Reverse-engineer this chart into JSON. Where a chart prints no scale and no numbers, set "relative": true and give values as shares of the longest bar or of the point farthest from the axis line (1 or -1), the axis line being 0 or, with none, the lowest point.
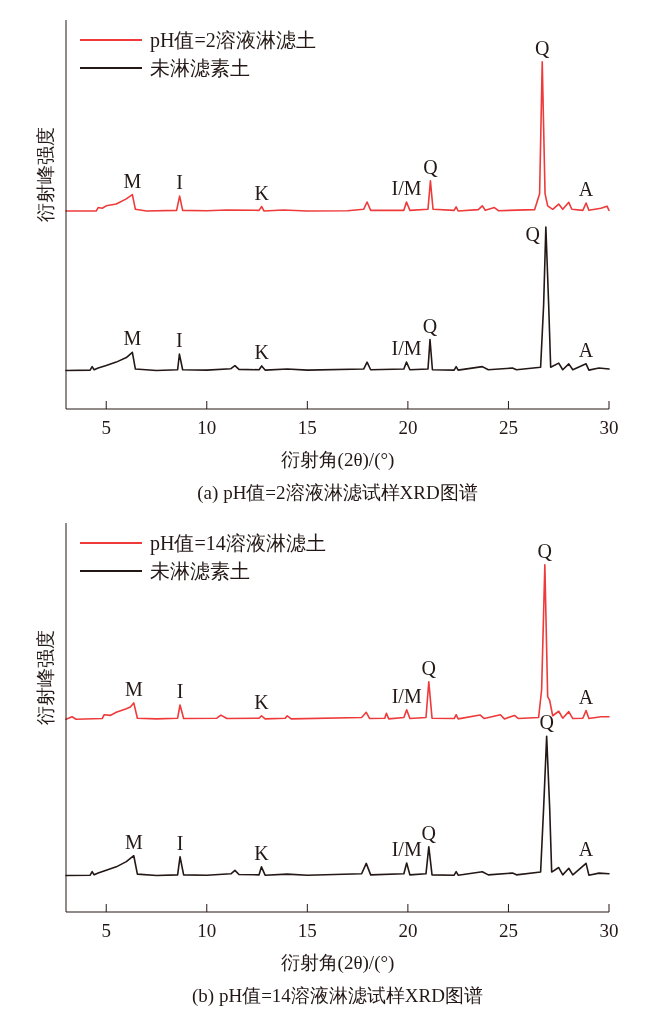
{
  "chart_data": [
    {
      "type": "line",
      "title": "(a) pH值=2溶液淋滤试样XRD图谱",
      "xlabel": "衍射角(2θ)/(°)",
      "ylabel": "衍射峰强度",
      "relative": true,
      "legend": "top left",
      "xlim": [
        3,
        30
      ],
      "xticks": [
        5,
        10,
        15,
        20,
        25,
        30
      ],
      "series": [
        {
          "name": "pH值=2溶液淋滤土",
          "color": "#ee3a3a",
          "x": [
            3,
            4.5,
            4.6,
            4.8,
            5.0,
            5.5,
            6.0,
            6.3,
            6.45,
            7.0,
            8.5,
            8.65,
            8.8,
            10,
            11,
            12.6,
            12.73,
            12.85,
            13.8,
            15,
            17,
            17.8,
            17.97,
            18.15,
            19.8,
            19.93,
            20.1,
            21.0,
            21.12,
            21.25,
            22.3,
            22.4,
            22.5,
            23.5,
            23.7,
            23.85,
            24.3,
            24.5,
            26.3,
            26.55,
            26.68,
            26.82,
            26.95,
            27.2,
            27.5,
            27.7,
            28.0,
            28.15,
            28.7,
            28.86,
            29.0,
            29.6,
            29.9,
            30
          ],
          "values": [
            0.57,
            0.57,
            0.58,
            0.578,
            0.585,
            0.59,
            0.605,
            0.617,
            0.575,
            0.57,
            0.572,
            0.613,
            0.572,
            0.571,
            0.573,
            0.572,
            0.583,
            0.57,
            0.573,
            0.57,
            0.571,
            0.575,
            0.596,
            0.572,
            0.572,
            0.596,
            0.572,
            0.575,
            0.657,
            0.575,
            0.572,
            0.582,
            0.57,
            0.574,
            0.585,
            0.572,
            0.58,
            0.571,
            0.574,
            0.62,
            1.0,
            0.62,
            0.585,
            0.575,
            0.59,
            0.575,
            0.595,
            0.575,
            0.572,
            0.593,
            0.572,
            0.578,
            0.584,
            0.572
          ]
        },
        {
          "name": "未淋滤素土",
          "color": "#231815",
          "x": [
            3,
            4.2,
            4.3,
            4.4,
            4.6,
            5.0,
            5.5,
            6.0,
            6.3,
            6.45,
            7.5,
            8.55,
            8.64,
            8.8,
            10,
            11.2,
            11.4,
            11.6,
            12.6,
            12.73,
            12.9,
            14,
            15,
            17.8,
            17.97,
            18.15,
            19.8,
            19.93,
            20.1,
            21.0,
            21.1,
            21.22,
            22.3,
            22.4,
            22.5,
            23.7,
            24,
            25.2,
            25.4,
            26.6,
            26.75,
            26.86,
            27.0,
            27.1,
            27.5,
            27.7,
            28.0,
            28.2,
            28.86,
            29.0,
            29.5,
            30
          ],
          "values": [
            0.111,
            0.112,
            0.122,
            0.113,
            0.118,
            0.125,
            0.135,
            0.148,
            0.163,
            0.115,
            0.111,
            0.113,
            0.158,
            0.113,
            0.112,
            0.116,
            0.125,
            0.114,
            0.113,
            0.124,
            0.112,
            0.115,
            0.112,
            0.115,
            0.135,
            0.113,
            0.115,
            0.135,
            0.113,
            0.115,
            0.2,
            0.113,
            0.112,
            0.122,
            0.112,
            0.122,
            0.113,
            0.118,
            0.113,
            0.12,
            0.3,
            0.524,
            0.3,
            0.12,
            0.132,
            0.113,
            0.13,
            0.113,
            0.13,
            0.112,
            0.118,
            0.115
          ]
        }
      ],
      "annotations": [
        {
          "text": "M",
          "x": 6.3,
          "y": 0.617
        },
        {
          "text": "I",
          "x": 8.65,
          "y": 0.613
        },
        {
          "text": "K",
          "x": 12.73,
          "y": 0.583
        },
        {
          "text": "I/M",
          "x": 19.93,
          "y": 0.596
        },
        {
          "text": "Q",
          "x": 21.12,
          "y": 0.657
        },
        {
          "text": "Q",
          "x": 26.68,
          "y": 1.0
        },
        {
          "text": "A",
          "x": 28.86,
          "y": 0.593
        },
        {
          "text": "M",
          "x": 6.3,
          "y": 0.163
        },
        {
          "text": "I",
          "x": 8.64,
          "y": 0.158
        },
        {
          "text": "K",
          "x": 12.73,
          "y": 0.124
        },
        {
          "text": "I/M",
          "x": 19.93,
          "y": 0.135
        },
        {
          "text": "Q",
          "x": 21.1,
          "y": 0.2
        },
        {
          "text": "Q",
          "x": 26.86,
          "y": 0.524
        },
        {
          "text": "A",
          "x": 28.86,
          "y": 0.13
        }
      ]
    },
    {
      "type": "line",
      "title": "(b) pH值=14溶液淋滤试样XRD图谱",
      "xlabel": "衍射角(2θ)/(°)",
      "ylabel": "衍射峰强度",
      "relative": true,
      "legend": "top left",
      "xlim": [
        3,
        30
      ],
      "xticks": [
        5,
        10,
        15,
        20,
        25,
        30
      ],
      "series": [
        {
          "name": "pH值=14溶液淋滤土",
          "color": "#ee3a3a",
          "x": [
            3,
            3.3,
            3.5,
            4.8,
            4.9,
            5.2,
            5.5,
            6.0,
            6.2,
            6.37,
            6.55,
            7.5,
            8.55,
            8.67,
            8.85,
            10.5,
            10.7,
            11,
            12.6,
            12.72,
            12.9,
            13.9,
            14.0,
            14.2,
            17.7,
            17.93,
            18.1,
            18.85,
            18.93,
            19.05,
            19.8,
            19.94,
            20.1,
            20.9,
            21.04,
            21.2,
            22.3,
            22.4,
            22.5,
            23.6,
            23.8,
            24.6,
            24.8,
            25.3,
            25.5,
            26.5,
            26.65,
            26.81,
            26.95,
            27.05,
            27.2,
            27.5,
            27.7,
            28.0,
            28.2,
            28.7,
            28.86,
            29.0,
            29.6,
            30
          ],
          "values": [
            0.555,
            0.562,
            0.555,
            0.557,
            0.568,
            0.566,
            0.575,
            0.585,
            0.59,
            0.602,
            0.558,
            0.556,
            0.558,
            0.596,
            0.557,
            0.558,
            0.567,
            0.557,
            0.558,
            0.565,
            0.556,
            0.558,
            0.565,
            0.556,
            0.56,
            0.575,
            0.557,
            0.558,
            0.572,
            0.556,
            0.56,
            0.582,
            0.557,
            0.56,
            0.663,
            0.558,
            0.557,
            0.568,
            0.556,
            0.567,
            0.557,
            0.568,
            0.556,
            0.566,
            0.557,
            0.56,
            0.64,
            1.0,
            0.62,
            0.609,
            0.565,
            0.578,
            0.558,
            0.577,
            0.557,
            0.558,
            0.58,
            0.557,
            0.562,
            0.562
          ]
        },
        {
          "name": "未淋滤素土",
          "color": "#231815",
          "x": [
            3,
            4.2,
            4.3,
            4.4,
            4.6,
            5.0,
            5.5,
            6.0,
            6.37,
            6.55,
            7.5,
            8.55,
            8.67,
            8.85,
            10,
            11.2,
            11.4,
            11.6,
            12.6,
            12.72,
            12.9,
            14,
            15,
            17.7,
            17.93,
            18.15,
            19.8,
            19.94,
            20.1,
            20.9,
            21.04,
            21.2,
            22.3,
            22.4,
            22.5,
            23.7,
            24,
            25.2,
            25.4,
            26.6,
            26.75,
            26.9,
            27.05,
            27.15,
            27.5,
            27.7,
            28.0,
            28.2,
            28.86,
            29.0,
            29.5,
            30
          ],
          "values": [
            0.105,
            0.106,
            0.116,
            0.107,
            0.112,
            0.12,
            0.13,
            0.145,
            0.162,
            0.109,
            0.105,
            0.107,
            0.159,
            0.107,
            0.106,
            0.11,
            0.12,
            0.108,
            0.107,
            0.13,
            0.106,
            0.109,
            0.106,
            0.11,
            0.14,
            0.107,
            0.11,
            0.141,
            0.107,
            0.11,
            0.188,
            0.107,
            0.106,
            0.116,
            0.106,
            0.116,
            0.107,
            0.112,
            0.107,
            0.115,
            0.3,
            0.506,
            0.3,
            0.115,
            0.128,
            0.107,
            0.126,
            0.107,
            0.14,
            0.106,
            0.112,
            0.11
          ]
        }
      ],
      "annotations": [
        {
          "text": "M",
          "x": 6.37,
          "y": 0.602
        },
        {
          "text": "I",
          "x": 8.67,
          "y": 0.596
        },
        {
          "text": "K",
          "x": 12.72,
          "y": 0.565
        },
        {
          "text": "I/M",
          "x": 19.94,
          "y": 0.582
        },
        {
          "text": "Q",
          "x": 21.04,
          "y": 0.663
        },
        {
          "text": "Q",
          "x": 26.81,
          "y": 1.0
        },
        {
          "text": "A",
          "x": 28.86,
          "y": 0.58
        },
        {
          "text": "M",
          "x": 6.37,
          "y": 0.162
        },
        {
          "text": "I",
          "x": 8.67,
          "y": 0.159
        },
        {
          "text": "K",
          "x": 12.72,
          "y": 0.13
        },
        {
          "text": "I/M",
          "x": 19.94,
          "y": 0.141
        },
        {
          "text": "Q",
          "x": 21.04,
          "y": 0.188
        },
        {
          "text": "Q",
          "x": 26.9,
          "y": 0.506
        },
        {
          "text": "A",
          "x": 28.86,
          "y": 0.14
        }
      ]
    }
  ]
}
